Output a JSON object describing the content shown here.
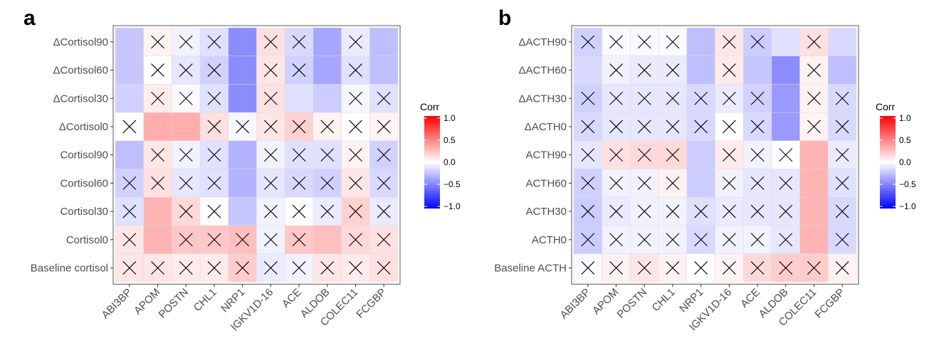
{
  "chart_data": [
    {
      "type": "heatmap",
      "panel_label": "a",
      "x_categories": [
        "ABI3BP",
        "APOM",
        "POSTN",
        "CHL1",
        "NRP1",
        "IGKV1D-16",
        "ACE",
        "ALDOB",
        "COLEC11",
        "FCGBP"
      ],
      "y_categories": [
        "ΔCortisol90",
        "ΔCortisol60",
        "ΔCortisol30",
        "ΔCortisol0",
        "Cortisol90",
        "Cortisol60",
        "Cortisol30",
        "Cortisol0",
        "Baseline cortisol"
      ],
      "values": [
        [
          -0.22,
          0.05,
          -0.05,
          -0.12,
          -0.45,
          0.12,
          -0.15,
          -0.35,
          -0.08,
          -0.25
        ],
        [
          -0.22,
          0.0,
          -0.1,
          -0.18,
          -0.45,
          0.1,
          -0.18,
          -0.35,
          -0.12,
          -0.25
        ],
        [
          -0.18,
          0.07,
          -0.02,
          -0.12,
          -0.45,
          0.12,
          -0.12,
          -0.2,
          -0.03,
          -0.12
        ],
        [
          0.0,
          0.32,
          0.32,
          0.12,
          -0.03,
          0.1,
          0.18,
          0.05,
          0.0,
          0.05
        ],
        [
          -0.25,
          0.1,
          -0.05,
          -0.12,
          -0.3,
          -0.05,
          -0.12,
          -0.12,
          0.05,
          -0.18
        ],
        [
          -0.18,
          0.12,
          -0.1,
          -0.12,
          -0.3,
          -0.1,
          -0.15,
          -0.18,
          0.1,
          -0.15
        ],
        [
          -0.12,
          0.3,
          0.15,
          0.0,
          -0.22,
          -0.05,
          0.0,
          -0.08,
          0.18,
          -0.08
        ],
        [
          0.1,
          0.3,
          0.22,
          0.22,
          0.25,
          -0.05,
          0.22,
          0.25,
          0.15,
          0.12
        ],
        [
          0.1,
          0.1,
          0.08,
          0.08,
          0.2,
          -0.08,
          -0.05,
          0.1,
          0.08,
          0.12
        ]
      ],
      "crossed": [
        [
          false,
          true,
          true,
          true,
          false,
          true,
          true,
          false,
          true,
          false
        ],
        [
          false,
          true,
          true,
          true,
          false,
          true,
          true,
          false,
          true,
          false
        ],
        [
          false,
          true,
          true,
          true,
          false,
          true,
          false,
          false,
          true,
          true
        ],
        [
          true,
          false,
          false,
          true,
          true,
          true,
          true,
          true,
          true,
          true
        ],
        [
          false,
          true,
          true,
          true,
          false,
          true,
          true,
          true,
          true,
          true
        ],
        [
          true,
          true,
          true,
          true,
          false,
          true,
          true,
          true,
          true,
          true
        ],
        [
          true,
          false,
          true,
          true,
          false,
          true,
          true,
          true,
          true,
          true
        ],
        [
          true,
          false,
          true,
          true,
          true,
          true,
          true,
          false,
          true,
          true
        ],
        [
          true,
          true,
          true,
          true,
          true,
          true,
          true,
          true,
          true,
          true
        ]
      ],
      "legend": {
        "title": "Corr",
        "ticks": [
          "1.0",
          "0.5",
          "0.0",
          "−0.5",
          "−1.0"
        ]
      },
      "range": [
        -1,
        1
      ],
      "colors": {
        "low": "#0000ff",
        "mid": "#ffffff",
        "high": "#ff0000"
      }
    },
    {
      "type": "heatmap",
      "panel_label": "b",
      "x_categories": [
        "ABI3BP",
        "APOM",
        "POSTN",
        "CHL1",
        "NRP1",
        "IGKV1D-16",
        "ACE",
        "ALDOB",
        "COLEC11",
        "FCGBP"
      ],
      "y_categories": [
        "ΔACTH90",
        "ΔACTH60",
        "ΔACTH30",
        "ΔACTH0",
        "ACTH90",
        "ACTH60",
        "ACTH30",
        "ACTH0",
        "Baseline ACTH"
      ],
      "values": [
        [
          -0.18,
          -0.02,
          -0.02,
          -0.02,
          -0.25,
          0.1,
          -0.2,
          -0.12,
          0.12,
          -0.15
        ],
        [
          -0.15,
          -0.05,
          -0.08,
          -0.08,
          -0.25,
          0.08,
          -0.22,
          -0.45,
          0.05,
          -0.25
        ],
        [
          -0.18,
          -0.1,
          -0.1,
          -0.1,
          -0.15,
          -0.08,
          -0.18,
          -0.4,
          0.05,
          -0.15
        ],
        [
          -0.15,
          -0.1,
          -0.1,
          -0.1,
          -0.15,
          0.0,
          -0.15,
          -0.4,
          0.05,
          -0.15
        ],
        [
          -0.1,
          0.12,
          0.15,
          0.15,
          -0.2,
          0.08,
          -0.05,
          0.0,
          0.3,
          -0.08
        ],
        [
          -0.18,
          -0.05,
          -0.05,
          0.05,
          -0.2,
          -0.05,
          -0.1,
          -0.1,
          0.3,
          -0.12
        ],
        [
          -0.2,
          -0.08,
          -0.05,
          -0.05,
          -0.12,
          -0.08,
          -0.1,
          -0.1,
          0.3,
          -0.15
        ],
        [
          -0.2,
          -0.05,
          -0.05,
          -0.05,
          -0.15,
          -0.05,
          -0.05,
          -0.1,
          0.3,
          -0.15
        ],
        [
          -0.02,
          0.05,
          0.1,
          0.05,
          0.0,
          0.05,
          0.15,
          0.2,
          0.2,
          0.05
        ]
      ],
      "crossed": [
        [
          true,
          true,
          true,
          true,
          false,
          true,
          true,
          false,
          true,
          false
        ],
        [
          false,
          true,
          true,
          true,
          false,
          true,
          false,
          false,
          true,
          false
        ],
        [
          true,
          true,
          true,
          true,
          true,
          true,
          true,
          false,
          true,
          true
        ],
        [
          true,
          true,
          true,
          true,
          true,
          true,
          true,
          false,
          true,
          true
        ],
        [
          true,
          true,
          true,
          true,
          false,
          true,
          true,
          true,
          false,
          true
        ],
        [
          true,
          true,
          true,
          true,
          false,
          true,
          true,
          true,
          false,
          true
        ],
        [
          true,
          true,
          true,
          true,
          true,
          true,
          true,
          true,
          false,
          true
        ],
        [
          true,
          true,
          true,
          true,
          true,
          true,
          true,
          true,
          false,
          true
        ],
        [
          true,
          true,
          true,
          true,
          true,
          true,
          true,
          true,
          true,
          true
        ]
      ],
      "legend": {
        "title": "Corr",
        "ticks": [
          "1.0",
          "0.5",
          "0.0",
          "−0.5",
          "−1.0"
        ]
      },
      "range": [
        -1,
        1
      ],
      "colors": {
        "low": "#0000ff",
        "mid": "#ffffff",
        "high": "#ff0000"
      }
    }
  ]
}
